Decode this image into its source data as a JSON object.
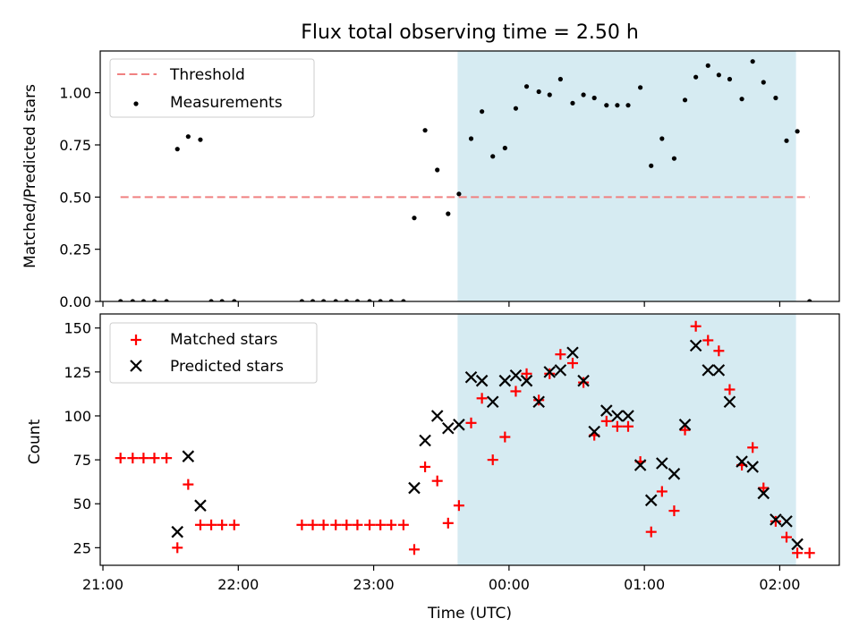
{
  "chart_data": [
    {
      "type": "scatter",
      "title": "Flux total observing time = 2.50 h",
      "xlabel": "",
      "ylabel": "Matched/Predicted stars",
      "x_unit": "hours UTC (times after midnight shown as 24+)",
      "xlim": [
        20.98,
        26.44
      ],
      "ylim": [
        0,
        1.2
      ],
      "yticks": [
        0.0,
        0.25,
        0.5,
        0.75,
        1.0
      ],
      "ytick_labels": [
        "0.00",
        "0.25",
        "0.50",
        "0.75",
        "1.00"
      ],
      "shaded_interval": [
        23.62,
        26.12
      ],
      "threshold": {
        "name": "Threshold",
        "y": 0.5,
        "x": [
          21.13,
          26.22
        ],
        "color": "#f08080"
      },
      "series": [
        {
          "name": "Measurements",
          "color": "#000000",
          "x": [
            21.13,
            21.22,
            21.3,
            21.38,
            21.47,
            21.55,
            21.63,
            21.72,
            21.8,
            21.88,
            21.97,
            22.47,
            22.55,
            22.63,
            22.72,
            22.8,
            22.88,
            22.97,
            23.05,
            23.13,
            23.22,
            23.3,
            23.38,
            23.47,
            23.55,
            23.63,
            23.72,
            23.8,
            23.88,
            23.97,
            24.05,
            24.13,
            24.22,
            24.3,
            24.38,
            24.47,
            24.55,
            24.63,
            24.72,
            24.8,
            24.88,
            24.97,
            25.05,
            25.13,
            25.22,
            25.3,
            25.38,
            25.47,
            25.55,
            25.63,
            25.72,
            25.8,
            25.88,
            25.97,
            26.05,
            26.13,
            26.22
          ],
          "y": [
            0,
            0,
            0,
            0,
            0,
            0.73,
            0.79,
            0.775,
            0,
            0,
            0,
            0,
            0,
            0,
            0,
            0,
            0,
            0,
            0,
            0,
            0,
            0.4,
            0.82,
            0.63,
            0.42,
            0.515,
            0.78,
            0.91,
            0.695,
            0.735,
            0.925,
            1.03,
            1.005,
            0.99,
            1.065,
            0.95,
            0.99,
            0.975,
            0.94,
            0.94,
            0.94,
            1.025,
            0.65,
            0.78,
            0.685,
            0.965,
            1.075,
            1.13,
            1.085,
            1.065,
            0.97,
            1.15,
            1.05,
            0.975,
            0.77,
            0.815,
            0
          ]
        }
      ]
    },
    {
      "type": "scatter",
      "title": "",
      "xlabel": "Time (UTC)",
      "ylabel": "Count",
      "x_unit": "hours UTC (times after midnight shown as 24+)",
      "xlim": [
        20.98,
        26.44
      ],
      "ylim": [
        15,
        158
      ],
      "yticks": [
        25,
        50,
        75,
        100,
        125,
        150
      ],
      "xticks": [
        21,
        22,
        23,
        24,
        25,
        26
      ],
      "xtick_labels": [
        "21:00",
        "22:00",
        "23:00",
        "00:00",
        "01:00",
        "02:00"
      ],
      "shaded_interval": [
        23.62,
        26.12
      ],
      "series": [
        {
          "name": "Matched stars",
          "marker": "plus",
          "color": "#ff0000",
          "x": [
            21.13,
            21.22,
            21.3,
            21.38,
            21.47,
            21.55,
            21.63,
            21.72,
            21.8,
            21.88,
            21.97,
            22.47,
            22.55,
            22.63,
            22.72,
            22.8,
            22.88,
            22.97,
            23.05,
            23.13,
            23.22,
            23.3,
            23.38,
            23.47,
            23.55,
            23.63,
            23.72,
            23.8,
            23.88,
            23.97,
            24.05,
            24.13,
            24.22,
            24.3,
            24.38,
            24.47,
            24.55,
            24.63,
            24.72,
            24.8,
            24.88,
            24.97,
            25.05,
            25.13,
            25.22,
            25.3,
            25.38,
            25.47,
            25.55,
            25.63,
            25.72,
            25.8,
            25.88,
            25.97,
            26.05,
            26.13,
            26.22
          ],
          "y": [
            76,
            76,
            76,
            76,
            76,
            25,
            61,
            38,
            38,
            38,
            38,
            38,
            38,
            38,
            38,
            38,
            38,
            38,
            38,
            38,
            38,
            24,
            71,
            63,
            39,
            49,
            96,
            110,
            75,
            88,
            114,
            124,
            109,
            124,
            135,
            130,
            119,
            89,
            97,
            94,
            94,
            74,
            34,
            57,
            46,
            92,
            151,
            143,
            137,
            115,
            72,
            82,
            59,
            40,
            31,
            22,
            22
          ]
        },
        {
          "name": "Predicted stars",
          "marker": "x",
          "color": "#000000",
          "x": [
            21.55,
            21.63,
            21.72,
            23.3,
            23.38,
            23.47,
            23.55,
            23.63,
            23.72,
            23.8,
            23.88,
            23.97,
            24.05,
            24.13,
            24.22,
            24.3,
            24.38,
            24.47,
            24.55,
            24.63,
            24.72,
            24.8,
            24.88,
            24.97,
            25.05,
            25.13,
            25.22,
            25.3,
            25.38,
            25.47,
            25.55,
            25.63,
            25.72,
            25.8,
            25.88,
            25.97,
            26.05,
            26.13
          ],
          "y": [
            34,
            77,
            49,
            59,
            86,
            100,
            93,
            95,
            122,
            120,
            108,
            120,
            123,
            120,
            108,
            125,
            126,
            136,
            120,
            91,
            103,
            100,
            100,
            72,
            52,
            73,
            67,
            95,
            140,
            126,
            126,
            108,
            74,
            71,
            56,
            41,
            40,
            27
          ]
        }
      ]
    }
  ]
}
